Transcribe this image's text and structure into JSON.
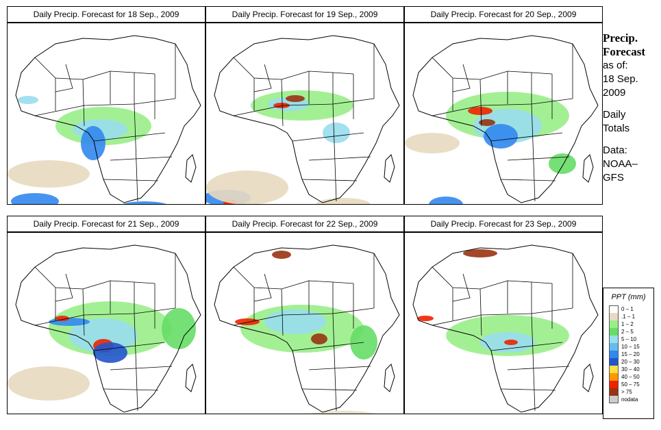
{
  "panels": [
    {
      "title": "Daily Precip. Forecast for  18 Sep., 2009"
    },
    {
      "title": "Daily Precip. Forecast for  19 Sep., 2009"
    },
    {
      "title": "Daily Precip. Forecast for  20 Sep., 2009"
    },
    {
      "title": "Daily Precip. Forecast for  21 Sep., 2009"
    },
    {
      "title": "Daily Precip. Forecast for  22 Sep., 2009"
    },
    {
      "title": "Daily Precip. Forecast for  23 Sep., 2009"
    }
  ],
  "sidebar": {
    "heading_line1": "Precip.",
    "heading_line2": "Forecast",
    "asof_label": "as of:",
    "asof_date1": "18 Sep.",
    "asof_date2": "2009",
    "totals1": "Daily",
    "totals2": "Totals",
    "data1": "Data:",
    "data2": "NOAA–",
    "data3": "GFS"
  },
  "legend": {
    "title": "PPT (mm)",
    "items": [
      {
        "label": "0 – 1",
        "color": "#ffffff"
      },
      {
        "label": ".1 – 1",
        "color": "#e8d9c0"
      },
      {
        "label": "1 – 2",
        "color": "#99ee88"
      },
      {
        "label": "2 – 5",
        "color": "#66dd66"
      },
      {
        "label": "5 – 10",
        "color": "#99ddee"
      },
      {
        "label": "10 – 15",
        "color": "#66bbee"
      },
      {
        "label": "15 – 20",
        "color": "#3388ee"
      },
      {
        "label": "20 – 30",
        "color": "#2255cc"
      },
      {
        "label": "30 – 40",
        "color": "#ffdd44"
      },
      {
        "label": "40 – 50",
        "color": "#ff9900"
      },
      {
        "label": "50 – 75",
        "color": "#ee2200"
      },
      {
        "label": "> 75",
        "color": "#993311"
      },
      {
        "label": "nodata",
        "color": "#cccccc"
      }
    ]
  },
  "map_colors": {
    "coast": "#000000",
    "tan": "#e8d9c0",
    "lightgreen": "#99ee88",
    "green": "#66dd66",
    "lightblue": "#99ddee",
    "blue": "#3388ee",
    "darkblue": "#2255cc",
    "red": "#ee2200",
    "darkred": "#993311"
  }
}
